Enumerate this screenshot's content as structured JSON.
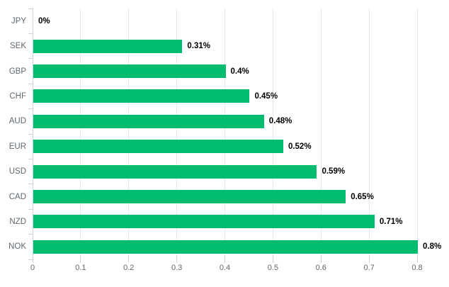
{
  "chart_data": {
    "type": "bar",
    "orientation": "horizontal",
    "title": "",
    "xlabel": "",
    "ylabel": "",
    "categories": [
      "JPY",
      "SEK",
      "GBP",
      "CHF",
      "AUD",
      "EUR",
      "USD",
      "CAD",
      "NZD",
      "NOK"
    ],
    "values": [
      0,
      0.31,
      0.4,
      0.45,
      0.48,
      0.52,
      0.59,
      0.65,
      0.71,
      0.8
    ],
    "value_labels": [
      "0%",
      "0.31%",
      "0.4%",
      "0.45%",
      "0.48%",
      "0.52%",
      "0.59%",
      "0.65%",
      "0.71%",
      "0.8%"
    ],
    "x_ticks": [
      "0",
      "0.1",
      "0.2",
      "0.3",
      "0.4",
      "0.5",
      "0.6",
      "0.7",
      "0.8"
    ],
    "xlim": [
      0,
      0.8
    ],
    "grid": true,
    "legend": "none",
    "bar_color": "#00bc6e",
    "gridline_color": "#e6e6e6",
    "axis_color": "#ccd3dc",
    "category_label_color": "#5d6771",
    "tick_label_color": "#666666",
    "data_label_color": "#000000"
  }
}
